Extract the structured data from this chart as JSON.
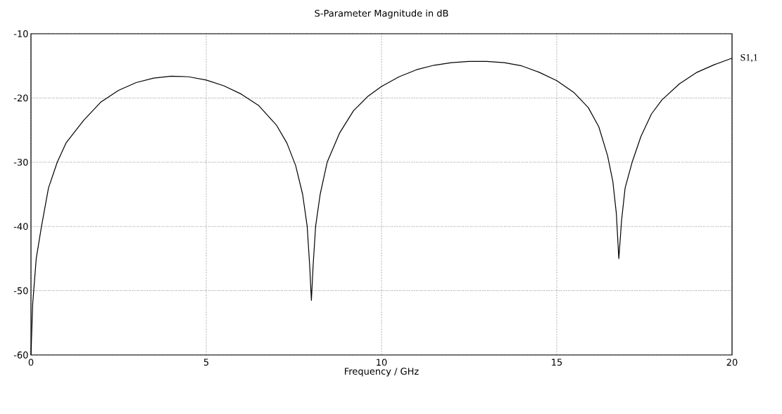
{
  "chart_data": {
    "type": "line",
    "title": "S-Parameter Magnitude in dB",
    "xlabel": "Frequency / GHz",
    "x": [
      0,
      0.05,
      0.15,
      0.3,
      0.5,
      0.75,
      1,
      1.5,
      2,
      2.5,
      3,
      3.5,
      4,
      4.5,
      5,
      5.5,
      6,
      6.5,
      7,
      7.3,
      7.55,
      7.75,
      7.88,
      7.95,
      8.0,
      8.05,
      8.12,
      8.25,
      8.45,
      8.8,
      9.2,
      9.6,
      10,
      10.5,
      11,
      11.5,
      12,
      12.5,
      13,
      13.5,
      14,
      14.5,
      15,
      15.5,
      15.9,
      16.2,
      16.45,
      16.6,
      16.7,
      16.77,
      16.85,
      16.95,
      17.15,
      17.4,
      17.7,
      18,
      18.5,
      19,
      19.5,
      20
    ],
    "series": [
      {
        "name": "S1,1",
        "color": "#000000",
        "values": [
          -60,
          -52,
          -45,
          -40,
          -34,
          -30,
          -27,
          -23.5,
          -20.6,
          -18.8,
          -17.6,
          -16.9,
          -16.6,
          -16.7,
          -17.2,
          -18.1,
          -19.4,
          -21.2,
          -24.2,
          -27,
          -30.5,
          -35,
          -40,
          -46,
          -51.5,
          -46,
          -40,
          -35,
          -30,
          -25.5,
          -22,
          -19.8,
          -18.2,
          -16.7,
          -15.6,
          -14.9,
          -14.5,
          -14.3,
          -14.3,
          -14.5,
          -15.0,
          -16.0,
          -17.3,
          -19.2,
          -21.5,
          -24.5,
          -29,
          -33,
          -38,
          -45,
          -39,
          -34,
          -30,
          -26,
          -22.5,
          -20.3,
          -17.8,
          -16,
          -14.8,
          -13.8
        ]
      }
    ],
    "xlim": [
      0,
      20
    ],
    "ylim": [
      -60,
      -10
    ],
    "xticks": [
      0,
      5,
      10,
      15,
      20
    ],
    "yticks": [
      -60,
      -50,
      -40,
      -30,
      -20,
      -10
    ],
    "grid": true
  }
}
